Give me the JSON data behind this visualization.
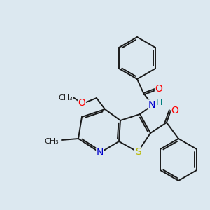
{
  "background_color": "#dce8f0",
  "bond_color": "#1a1a1a",
  "atom_colors": {
    "O": "#ff0000",
    "N": "#0000cd",
    "S": "#b8b800",
    "H": "#008080",
    "C": "#1a1a1a"
  },
  "fig_size": [
    3.0,
    3.0
  ],
  "dpi": 100
}
